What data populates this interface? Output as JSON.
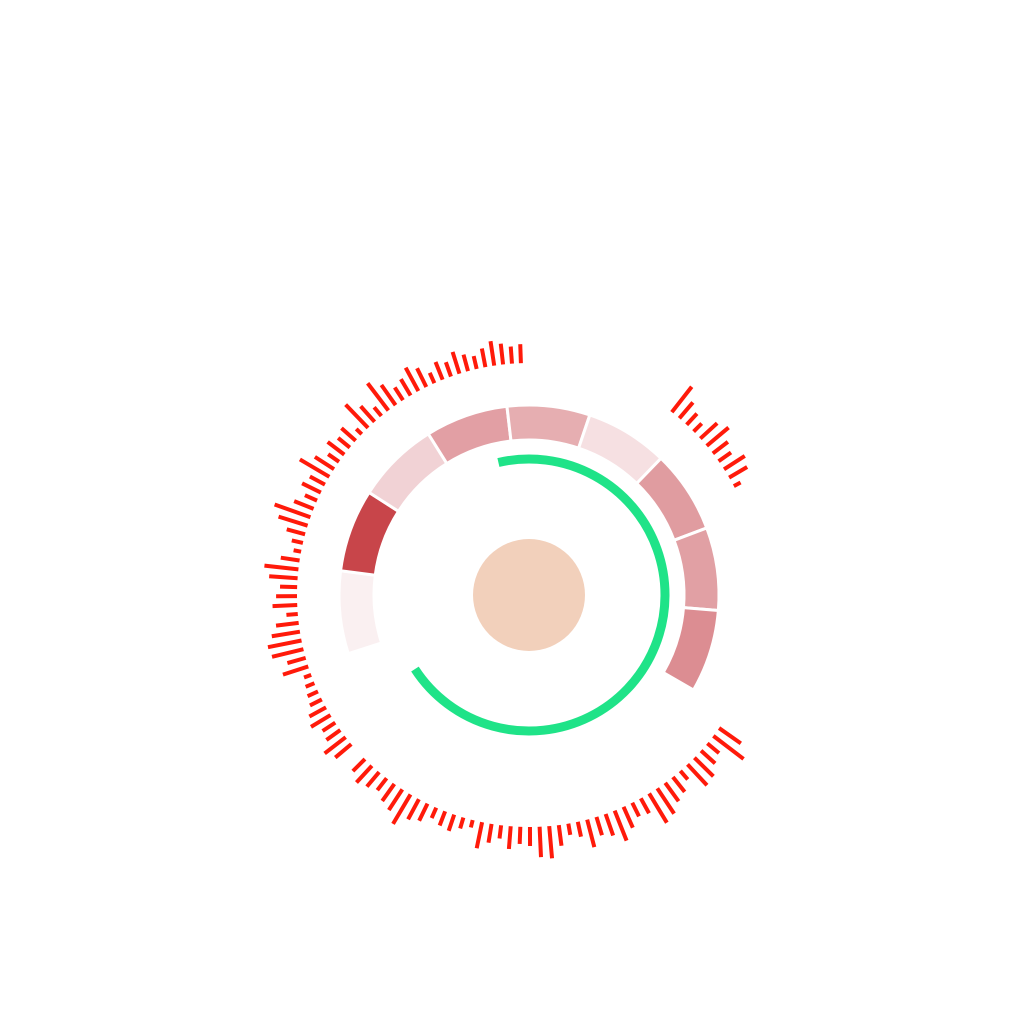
{
  "colors": {
    "background": "#ffffff",
    "center_disc": "#f2d0bb",
    "progress_arc": "#1fe388",
    "tick_bars": "#ff1a0a",
    "segment_separator": "#ffffff"
  },
  "chart_data": {
    "type": "radial",
    "title": "",
    "center_disc": {
      "shape": "circle"
    },
    "progress_arc": {
      "start_angle_deg": -13,
      "end_angle_deg": 237,
      "fraction": 0.694
    },
    "heat_segments": {
      "start_angle_deg": 252,
      "end_angle_deg": 480,
      "values": [
        0.06,
        0.9,
        0.22,
        0.45,
        0.38,
        0.14,
        0.45,
        0.42,
        0.5
      ],
      "colors": [
        "#faf0f1",
        "#c8454a",
        "#f1d2d5",
        "#e29fa4",
        "#e6aeb1",
        "#f6e0e2",
        "#e09ca0",
        "#e1a0a4",
        "#dc8d92"
      ]
    },
    "tick_groups": [
      {
        "start_angle_deg": 125,
        "end_angle_deg": 225,
        "values": [
          0.7,
          1.0,
          0.4,
          0.5,
          0.7,
          0.75,
          0.3,
          0.5,
          0.6,
          0.8,
          0.9,
          0.45,
          0.4,
          0.6,
          0.85,
          0.6,
          0.5,
          0.75,
          0.4,
          0.3,
          0.55,
          0.85,
          0.8,
          0.5,
          0.45,
          0.6,
          0.35,
          0.5,
          0.7,
          0.2,
          0.3,
          0.45,
          0.4,
          0.3,
          0.5,
          0.6,
          0.9,
          0.65,
          0.55,
          0.4,
          0.5,
          0.6,
          0.45
        ]
      },
      {
        "start_angle_deg": 230,
        "end_angle_deg": 358,
        "values": [
          0.55,
          0.7,
          0.45,
          0.4,
          0.6,
          0.5,
          0.35,
          0.3,
          0.25,
          0.2,
          0.7,
          0.5,
          0.85,
          0.9,
          0.75,
          0.6,
          0.3,
          0.65,
          0.55,
          0.45,
          0.75,
          0.9,
          0.5,
          0.2,
          0.3,
          0.5,
          0.8,
          1.0,
          0.55,
          0.35,
          0.55,
          0.45,
          0.9,
          0.6,
          0.35,
          0.55,
          0.4,
          0.5,
          0.2,
          0.85,
          0.55,
          0.3,
          0.9,
          0.65,
          0.4,
          0.5,
          0.7,
          0.55,
          0.3,
          0.5,
          0.4,
          0.6,
          0.45,
          0.35,
          0.5,
          0.65,
          0.55,
          0.45,
          0.5
        ]
      },
      {
        "start_angle_deg": 38,
        "end_angle_deg": 62,
        "values": [
          0.85,
          0.55,
          0.4,
          0.3,
          0.6,
          0.75,
          0.5,
          0.4,
          0.65,
          0.55,
          0.2
        ]
      }
    ]
  }
}
